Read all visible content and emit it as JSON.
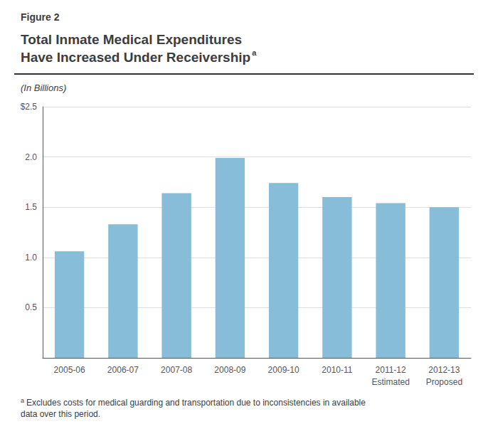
{
  "chart_data": {
    "type": "bar",
    "figure_label": "Figure 2",
    "title": "Total Inmate Medical Expenditures\nHave Increased Under Receivership",
    "title_superscript": "a",
    "subtitle": "(In Billions)",
    "categories": [
      "2005-06",
      "2006-07",
      "2007-08",
      "2008-09",
      "2009-10",
      "2010-11",
      "2011-12",
      "2012-13"
    ],
    "values": [
      1.06,
      1.33,
      1.64,
      1.99,
      1.74,
      1.6,
      1.54,
      1.5
    ],
    "color": "#87bdd8",
    "annotations": [
      {
        "category": "2011-12",
        "text": "Estimated"
      },
      {
        "category": "2012-13",
        "text": "Proposed"
      }
    ],
    "ylim": [
      0,
      2.5
    ],
    "yticks": [
      0.5,
      {
        "value": 1,
        "label": "1.0"
      },
      1.5,
      {
        "value": 2,
        "label": "2.0"
      },
      {
        "value": 2.5,
        "label": "$2.5"
      }
    ],
    "grid": true,
    "footnote": {
      "marker": "a",
      "text": "Excludes costs for medical guarding and transportation due to inconsistencies in available data over this period."
    }
  }
}
